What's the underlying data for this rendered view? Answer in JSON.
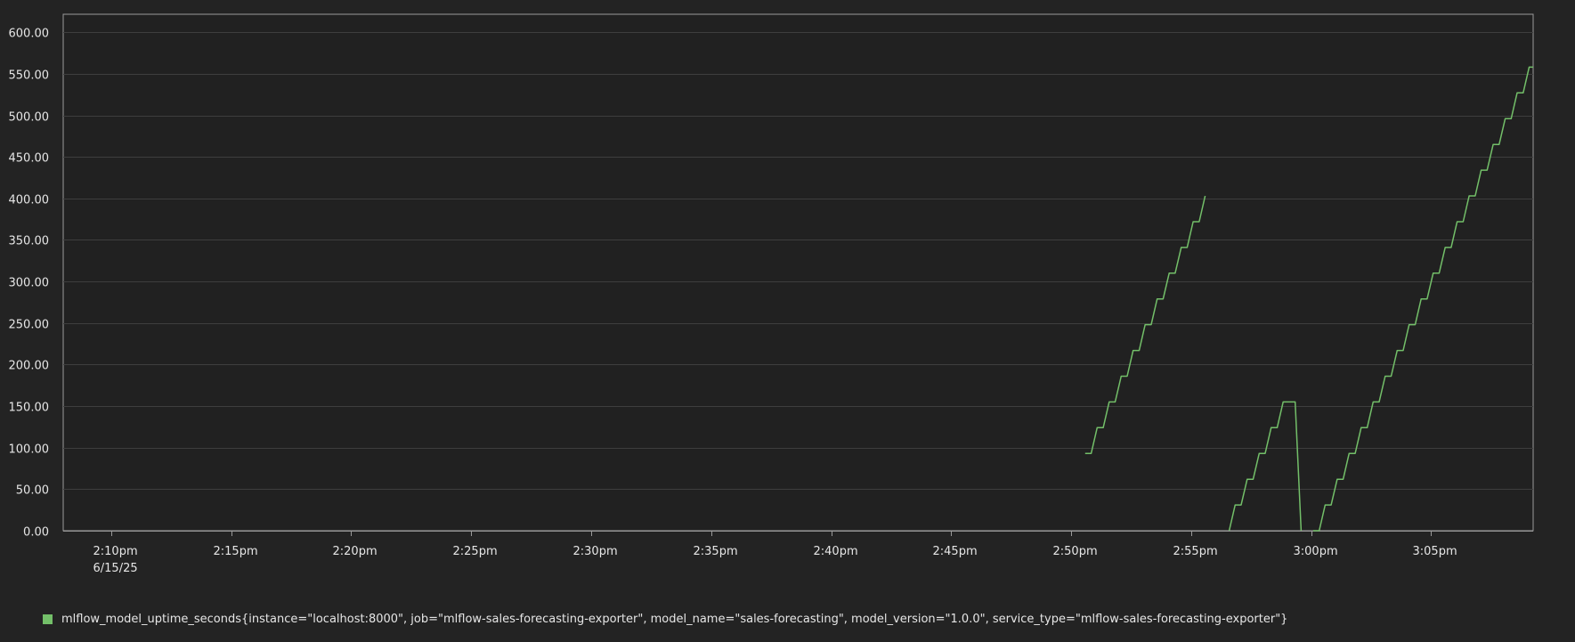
{
  "chart_data": {
    "type": "line",
    "x_axis_type": "time",
    "xlim": [
      "2025-06-15 14:08:00",
      "2025-06-15 15:09:15"
    ],
    "ylim": [
      0,
      621.7
    ],
    "y_ticks": [
      {
        "value": 0,
        "label": "0.00"
      },
      {
        "value": 50,
        "label": "50.00"
      },
      {
        "value": 100,
        "label": "100.00"
      },
      {
        "value": 150,
        "label": "150.00"
      },
      {
        "value": 200,
        "label": "200.00"
      },
      {
        "value": 250,
        "label": "250.00"
      },
      {
        "value": 300,
        "label": "300.00"
      },
      {
        "value": 350,
        "label": "350.00"
      },
      {
        "value": 400,
        "label": "400.00"
      },
      {
        "value": 450,
        "label": "450.00"
      },
      {
        "value": 500,
        "label": "500.00"
      },
      {
        "value": 550,
        "label": "550.00"
      },
      {
        "value": 600,
        "label": "600.00"
      }
    ],
    "x_ticks": [
      {
        "value": "2025-06-15 14:10:00",
        "label": "2:10pm",
        "sublabel": "6/15/25"
      },
      {
        "value": "2025-06-15 14:15:00",
        "label": "2:15pm"
      },
      {
        "value": "2025-06-15 14:20:00",
        "label": "2:20pm"
      },
      {
        "value": "2025-06-15 14:25:00",
        "label": "2:25pm"
      },
      {
        "value": "2025-06-15 14:30:00",
        "label": "2:30pm"
      },
      {
        "value": "2025-06-15 14:35:00",
        "label": "2:35pm"
      },
      {
        "value": "2025-06-15 14:40:00",
        "label": "2:40pm"
      },
      {
        "value": "2025-06-15 14:45:00",
        "label": "2:45pm"
      },
      {
        "value": "2025-06-15 14:50:00",
        "label": "2:50pm"
      },
      {
        "value": "2025-06-15 14:55:00",
        "label": "2:55pm"
      },
      {
        "value": "2025-06-15 15:00:00",
        "label": "3:00pm"
      },
      {
        "value": "2025-06-15 15:05:00",
        "label": "3:05pm"
      }
    ],
    "grid": true,
    "legend_position": "bottom-left",
    "colors": {
      "series": "#73bf69",
      "grid": "#3e3e3e",
      "axis": "#9a9a9a",
      "plot_background": "#212121"
    },
    "series": [
      {
        "name": "mlflow_model_uptime_seconds{instance=\"localhost:8000\", job=\"mlflow-sales-forecasting-exporter\", model_name=\"sales-forecasting\", model_version=\"1.0.0\", service_type=\"mlflow-sales-forecasting-exporter\"}",
        "segments": [
          [
            [
              "2025-06-15 14:50:35",
              93
            ],
            [
              "2025-06-15 14:50:50",
              93
            ],
            [
              "2025-06-15 14:51:05",
              124
            ],
            [
              "2025-06-15 14:51:20",
              124
            ],
            [
              "2025-06-15 14:51:35",
              155
            ],
            [
              "2025-06-15 14:51:50",
              155
            ],
            [
              "2025-06-15 14:52:05",
              186
            ],
            [
              "2025-06-15 14:52:20",
              186
            ],
            [
              "2025-06-15 14:52:35",
              217
            ],
            [
              "2025-06-15 14:52:50",
              217
            ],
            [
              "2025-06-15 14:53:05",
              248
            ],
            [
              "2025-06-15 14:53:20",
              248
            ],
            [
              "2025-06-15 14:53:35",
              279
            ],
            [
              "2025-06-15 14:53:50",
              279
            ],
            [
              "2025-06-15 14:54:05",
              310
            ],
            [
              "2025-06-15 14:54:20",
              310
            ],
            [
              "2025-06-15 14:54:35",
              341
            ],
            [
              "2025-06-15 14:54:50",
              341
            ],
            [
              "2025-06-15 14:55:05",
              372
            ],
            [
              "2025-06-15 14:55:20",
              372
            ],
            [
              "2025-06-15 14:55:35",
              403
            ]
          ],
          [
            [
              "2025-06-15 14:56:35",
              0
            ],
            [
              "2025-06-15 14:56:50",
              31
            ],
            [
              "2025-06-15 14:57:05",
              31
            ],
            [
              "2025-06-15 14:57:20",
              62
            ],
            [
              "2025-06-15 14:57:35",
              62
            ],
            [
              "2025-06-15 14:57:50",
              93
            ],
            [
              "2025-06-15 14:58:05",
              93
            ],
            [
              "2025-06-15 14:58:20",
              124
            ],
            [
              "2025-06-15 14:58:35",
              124
            ],
            [
              "2025-06-15 14:58:50",
              155
            ],
            [
              "2025-06-15 14:59:05",
              155
            ],
            [
              "2025-06-15 14:59:20",
              155
            ],
            [
              "2025-06-15 14:59:35",
              0
            ]
          ],
          [
            [
              "2025-06-15 15:00:05",
              0
            ],
            [
              "2025-06-15 15:00:20",
              0
            ],
            [
              "2025-06-15 15:00:35",
              31
            ],
            [
              "2025-06-15 15:00:50",
              31
            ],
            [
              "2025-06-15 15:01:05",
              62
            ],
            [
              "2025-06-15 15:01:20",
              62
            ],
            [
              "2025-06-15 15:01:35",
              93
            ],
            [
              "2025-06-15 15:01:50",
              93
            ],
            [
              "2025-06-15 15:02:05",
              124
            ],
            [
              "2025-06-15 15:02:20",
              124
            ],
            [
              "2025-06-15 15:02:35",
              155
            ],
            [
              "2025-06-15 15:02:50",
              155
            ],
            [
              "2025-06-15 15:03:05",
              186
            ],
            [
              "2025-06-15 15:03:20",
              186
            ],
            [
              "2025-06-15 15:03:35",
              217
            ],
            [
              "2025-06-15 15:03:50",
              217
            ],
            [
              "2025-06-15 15:04:05",
              248
            ],
            [
              "2025-06-15 15:04:20",
              248
            ],
            [
              "2025-06-15 15:04:35",
              279
            ],
            [
              "2025-06-15 15:04:50",
              279
            ],
            [
              "2025-06-15 15:05:05",
              310
            ],
            [
              "2025-06-15 15:05:20",
              310
            ],
            [
              "2025-06-15 15:05:35",
              341
            ],
            [
              "2025-06-15 15:05:50",
              341
            ],
            [
              "2025-06-15 15:06:05",
              372
            ],
            [
              "2025-06-15 15:06:20",
              372
            ],
            [
              "2025-06-15 15:06:35",
              403
            ],
            [
              "2025-06-15 15:06:50",
              403
            ],
            [
              "2025-06-15 15:07:05",
              434
            ],
            [
              "2025-06-15 15:07:20",
              434
            ],
            [
              "2025-06-15 15:07:35",
              465
            ],
            [
              "2025-06-15 15:07:50",
              465
            ],
            [
              "2025-06-15 15:08:05",
              496
            ],
            [
              "2025-06-15 15:08:20",
              496
            ],
            [
              "2025-06-15 15:08:35",
              527
            ],
            [
              "2025-06-15 15:08:50",
              527
            ],
            [
              "2025-06-15 15:09:05",
              558
            ],
            [
              "2025-06-15 15:09:15",
              558
            ]
          ]
        ]
      }
    ]
  }
}
